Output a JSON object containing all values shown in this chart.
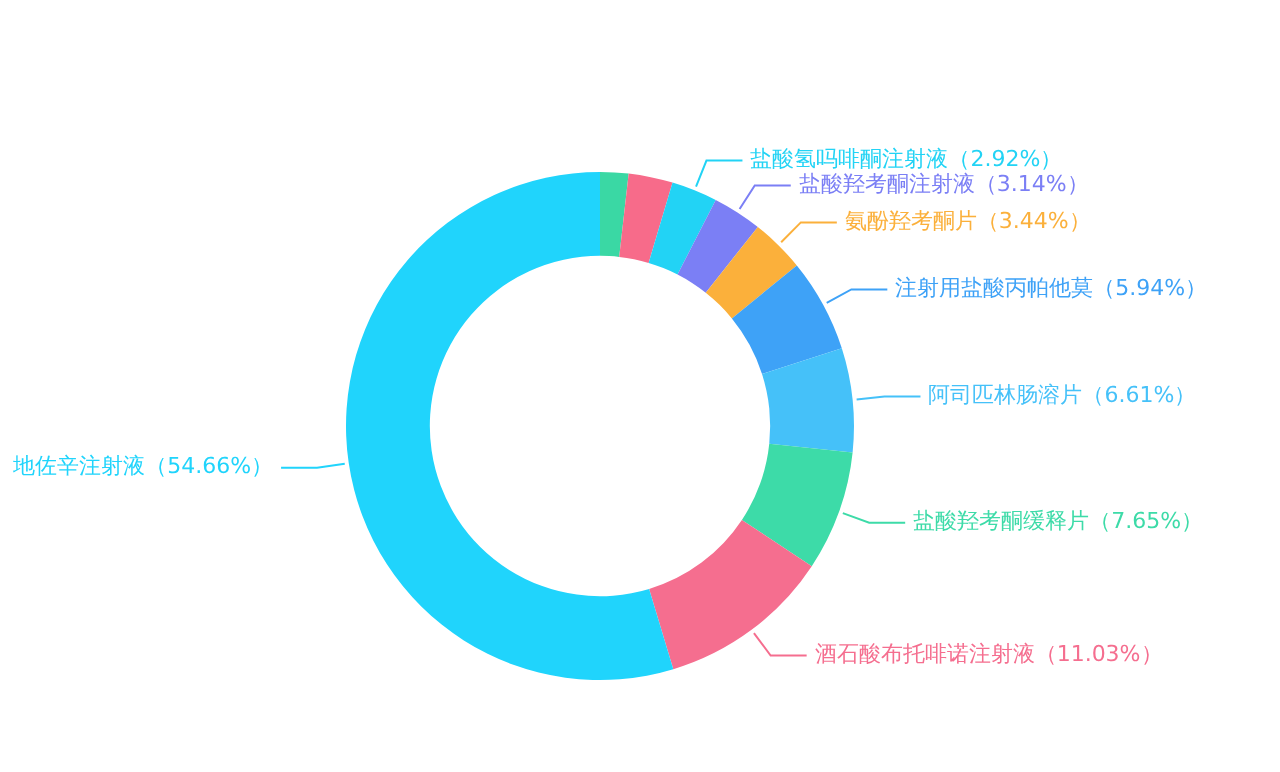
{
  "chart_data": {
    "type": "donut",
    "categories": [
      null,
      null,
      "盐酸氢吗啡酮注射液",
      "盐酸羟考酮注射液",
      "氨酚羟考酮片",
      "注射用盐酸丙帕他莫",
      "阿司匹林肠溶片",
      "盐酸羟考酮缓释片",
      "酒石酸布托啡诺注射液",
      "地佐辛注射液"
    ],
    "values": [
      1.8,
      2.81,
      2.92,
      3.14,
      3.44,
      5.94,
      6.61,
      7.65,
      11.03,
      54.66
    ],
    "value_labels": [
      null,
      null,
      "（2.92%）",
      "（3.14%）",
      "（3.44%）",
      "（5.94%）",
      "（6.61%）",
      "（7.65%）",
      "（11.03%）",
      "（54.66%）"
    ],
    "colors": [
      "#3ad8a4",
      "#f76b8a",
      "#22d3f5",
      "#7b7ff5",
      "#fbb03b",
      "#3ea2f7",
      "#45c1f9",
      "#3ddba8",
      "#f56e8f",
      "#20d4fc"
    ],
    "legend": false
  }
}
